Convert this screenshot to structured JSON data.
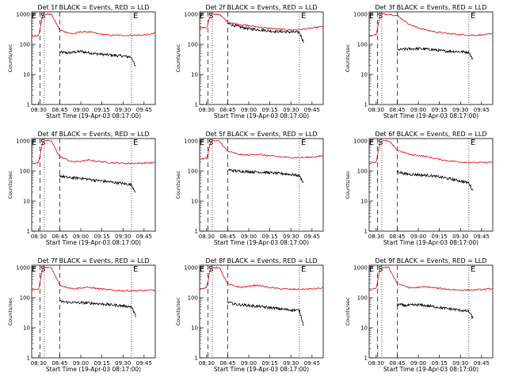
{
  "figure": {
    "xlabel": "Start Time (19-Apr-03 08:17:00)",
    "ylabel": "Counts/sec",
    "marker_labels": {
      "S": "S",
      "E": "E"
    },
    "x_tick_labels": [
      "08:30",
      "08:45",
      "09:00",
      "09:15",
      "09:30",
      "09:45"
    ],
    "y_tick_labels": [
      "1",
      "10",
      "100",
      "1000"
    ],
    "colors": {
      "events": "#000000",
      "lld": "#dd0000"
    }
  },
  "chart_data": [
    {
      "type": "line",
      "title": "Det 1f BLACK = Events, RED = LLD",
      "xlim": [
        8.417,
        9.883
      ],
      "ylim": [
        1,
        1200
      ],
      "yscale": "log",
      "markers": {
        "S": 8.55,
        "E": 9.65
      },
      "dotted_lines": [
        8.567,
        9.6
      ],
      "dashed_lines": [
        8.517,
        8.75
      ],
      "series": [
        {
          "name": "Events",
          "color": "#000000",
          "x": [
            8.75,
            8.85,
            9.0,
            9.15,
            9.3,
            9.45,
            9.6,
            9.65
          ],
          "values": [
            55,
            52,
            58,
            50,
            45,
            42,
            38,
            17
          ]
        },
        {
          "name": "LLD",
          "color": "#dd0000",
          "x": [
            8.42,
            8.5,
            8.55,
            8.6,
            8.65,
            8.75,
            8.9,
            9.0,
            9.1,
            9.2,
            9.35,
            9.5,
            9.65,
            9.8,
            9.88
          ],
          "values": [
            180,
            200,
            1000,
            1000,
            1000,
            300,
            220,
            260,
            260,
            225,
            200,
            200,
            200,
            210,
            230
          ]
        }
      ]
    },
    {
      "type": "line",
      "title": "Det 2f BLACK = Events, RED = LLD",
      "xlim": [
        8.417,
        9.883
      ],
      "ylim": [
        1,
        1200
      ],
      "yscale": "log",
      "markers": {
        "S": 8.55,
        "E": 9.65
      },
      "dotted_lines": [
        8.567,
        9.6
      ],
      "dashed_lines": [
        8.517,
        8.75
      ],
      "series": [
        {
          "name": "Events",
          "color": "#000000",
          "x": [
            8.75,
            8.85,
            9.0,
            9.15,
            9.3,
            9.45,
            9.6,
            9.65
          ],
          "values": [
            500,
            400,
            330,
            300,
            270,
            260,
            250,
            120
          ]
        },
        {
          "name": "LLD",
          "color": "#dd0000",
          "x": [
            8.42,
            8.5,
            8.55,
            8.6,
            8.65,
            8.75,
            8.9,
            9.0,
            9.1,
            9.2,
            9.35,
            9.5,
            9.65,
            9.8,
            9.88
          ],
          "values": [
            350,
            360,
            1000,
            1000,
            1000,
            550,
            450,
            420,
            380,
            350,
            320,
            300,
            320,
            360,
            400
          ]
        }
      ]
    },
    {
      "type": "line",
      "title": "Det 3f BLACK = Events, RED = LLD",
      "xlim": [
        8.417,
        9.883
      ],
      "ylim": [
        1,
        1200
      ],
      "yscale": "log",
      "markers": {
        "S": 8.55,
        "E": 9.65
      },
      "dotted_lines": [
        8.567,
        9.6
      ],
      "dashed_lines": [
        8.517,
        8.75
      ],
      "series": [
        {
          "name": "Events",
          "color": "#000000",
          "x": [
            8.75,
            8.85,
            9.0,
            9.15,
            9.3,
            9.45,
            9.6,
            9.65
          ],
          "values": [
            65,
            70,
            72,
            68,
            60,
            58,
            55,
            30
          ]
        },
        {
          "name": "LLD",
          "color": "#dd0000",
          "x": [
            8.42,
            8.5,
            8.55,
            8.6,
            8.65,
            8.75,
            8.9,
            9.0,
            9.1,
            9.2,
            9.35,
            9.5,
            9.65,
            9.8,
            9.88
          ],
          "values": [
            190,
            210,
            1000,
            1000,
            1000,
            900,
            450,
            350,
            300,
            260,
            230,
            210,
            200,
            210,
            220
          ]
        }
      ]
    },
    {
      "type": "line",
      "title": "Det 4f BLACK = Events, RED = LLD",
      "xlim": [
        8.417,
        9.883
      ],
      "ylim": [
        1,
        1200
      ],
      "yscale": "log",
      "markers": {
        "S": 8.55,
        "E": 9.65
      },
      "dotted_lines": [
        8.567,
        9.6
      ],
      "dashed_lines": [
        8.517,
        8.75
      ],
      "series": [
        {
          "name": "Events",
          "color": "#000000",
          "x": [
            8.75,
            8.85,
            9.0,
            9.15,
            9.3,
            9.45,
            9.6,
            9.65
          ],
          "values": [
            70,
            60,
            58,
            50,
            45,
            40,
            35,
            20
          ]
        },
        {
          "name": "LLD",
          "color": "#dd0000",
          "x": [
            8.42,
            8.5,
            8.55,
            8.6,
            8.65,
            8.75,
            8.9,
            9.0,
            9.1,
            9.2,
            9.35,
            9.5,
            9.65,
            9.8,
            9.88
          ],
          "values": [
            170,
            190,
            1000,
            1000,
            1000,
            300,
            200,
            210,
            230,
            210,
            190,
            180,
            180,
            185,
            190
          ]
        }
      ]
    },
    {
      "type": "line",
      "title": "Det 5f BLACK = Events, RED = LLD",
      "xlim": [
        8.417,
        9.883
      ],
      "ylim": [
        1,
        1200
      ],
      "yscale": "log",
      "markers": {
        "S": 8.55,
        "E": 9.65
      },
      "dotted_lines": [
        8.567,
        9.6
      ],
      "dashed_lines": [
        8.517,
        8.75
      ],
      "series": [
        {
          "name": "Events",
          "color": "#000000",
          "x": [
            8.75,
            8.85,
            9.0,
            9.15,
            9.3,
            9.45,
            9.6,
            9.65
          ],
          "values": [
            110,
            100,
            95,
            92,
            85,
            80,
            70,
            40
          ]
        },
        {
          "name": "LLD",
          "color": "#dd0000",
          "x": [
            8.42,
            8.5,
            8.55,
            8.6,
            8.65,
            8.75,
            8.9,
            9.0,
            9.1,
            9.2,
            9.35,
            9.5,
            9.65,
            9.8,
            9.88
          ],
          "values": [
            250,
            260,
            1000,
            1000,
            1000,
            450,
            350,
            340,
            360,
            330,
            300,
            280,
            280,
            300,
            320
          ]
        }
      ]
    },
    {
      "type": "line",
      "title": "Det 6f BLACK = Events, RED = LLD",
      "xlim": [
        8.417,
        9.883
      ],
      "ylim": [
        1,
        1200
      ],
      "yscale": "log",
      "markers": {
        "S": 8.55,
        "E": 9.65
      },
      "dotted_lines": [
        8.567,
        9.6
      ],
      "dashed_lines": [
        8.517,
        8.75
      ],
      "series": [
        {
          "name": "Events",
          "color": "#000000",
          "x": [
            8.75,
            8.85,
            9.0,
            9.15,
            9.3,
            9.45,
            9.6,
            9.65
          ],
          "values": [
            95,
            80,
            75,
            70,
            60,
            50,
            40,
            22
          ]
        },
        {
          "name": "LLD",
          "color": "#dd0000",
          "x": [
            8.42,
            8.5,
            8.55,
            8.6,
            8.65,
            8.75,
            8.9,
            9.0,
            9.1,
            9.2,
            9.35,
            9.5,
            9.65,
            9.8,
            9.88
          ],
          "values": [
            180,
            200,
            1000,
            1000,
            1000,
            500,
            350,
            330,
            300,
            260,
            220,
            200,
            190,
            190,
            200
          ]
        }
      ]
    },
    {
      "type": "line",
      "title": "Det 7f BLACK = Events, RED = LLD",
      "xlim": [
        8.417,
        9.883
      ],
      "ylim": [
        1,
        1200
      ],
      "yscale": "log",
      "markers": {
        "S": 8.55,
        "E": 9.65
      },
      "dotted_lines": [
        8.567,
        9.6
      ],
      "dashed_lines": [
        8.517,
        8.75
      ],
      "series": [
        {
          "name": "Events",
          "color": "#000000",
          "x": [
            8.75,
            8.85,
            9.0,
            9.15,
            9.3,
            9.45,
            9.6,
            9.65
          ],
          "values": [
            75,
            70,
            68,
            65,
            60,
            55,
            50,
            25
          ]
        },
        {
          "name": "LLD",
          "color": "#dd0000",
          "x": [
            8.42,
            8.5,
            8.55,
            8.6,
            8.65,
            8.75,
            8.9,
            9.0,
            9.1,
            9.2,
            9.35,
            9.5,
            9.65,
            9.8,
            9.88
          ],
          "values": [
            180,
            190,
            1000,
            1000,
            1000,
            260,
            200,
            210,
            220,
            200,
            180,
            170,
            170,
            175,
            180
          ]
        }
      ]
    },
    {
      "type": "line",
      "title": "Det 8f BLACK = Events, RED = LLD",
      "xlim": [
        8.417,
        9.883
      ],
      "ylim": [
        1,
        1200
      ],
      "yscale": "log",
      "markers": {
        "S": 8.55,
        "E": 9.65
      },
      "dotted_lines": [
        8.567,
        9.6
      ],
      "dashed_lines": [
        8.517,
        8.75
      ],
      "series": [
        {
          "name": "Events",
          "color": "#000000",
          "x": [
            8.75,
            8.85,
            9.0,
            9.15,
            9.3,
            9.45,
            9.6,
            9.65
          ],
          "values": [
            70,
            60,
            55,
            50,
            45,
            40,
            38,
            12
          ]
        },
        {
          "name": "LLD",
          "color": "#dd0000",
          "x": [
            8.42,
            8.5,
            8.55,
            8.6,
            8.65,
            8.75,
            8.9,
            9.0,
            9.1,
            9.2,
            9.35,
            9.5,
            9.65,
            9.8,
            9.88
          ],
          "values": [
            190,
            220,
            1000,
            1000,
            1000,
            280,
            220,
            240,
            260,
            230,
            200,
            190,
            190,
            200,
            210
          ]
        }
      ]
    },
    {
      "type": "line",
      "title": "Det 9f BLACK = Events, RED = LLD",
      "xlim": [
        8.417,
        9.883
      ],
      "ylim": [
        1,
        1200
      ],
      "yscale": "log",
      "markers": {
        "S": 8.55,
        "E": 9.65
      },
      "dotted_lines": [
        8.567,
        9.6
      ],
      "dashed_lines": [
        8.517,
        8.75
      ],
      "series": [
        {
          "name": "Events",
          "color": "#000000",
          "x": [
            8.75,
            8.85,
            9.0,
            9.15,
            9.3,
            9.45,
            9.6,
            9.65
          ],
          "values": [
            60,
            55,
            58,
            52,
            45,
            40,
            35,
            20
          ]
        },
        {
          "name": "LLD",
          "color": "#dd0000",
          "x": [
            8.42,
            8.5,
            8.55,
            8.6,
            8.65,
            8.75,
            8.9,
            9.0,
            9.1,
            9.2,
            9.35,
            9.5,
            9.65,
            9.8,
            9.88
          ],
          "values": [
            180,
            200,
            1000,
            1000,
            1000,
            300,
            210,
            220,
            230,
            210,
            190,
            180,
            180,
            190,
            200
          ]
        }
      ]
    }
  ]
}
